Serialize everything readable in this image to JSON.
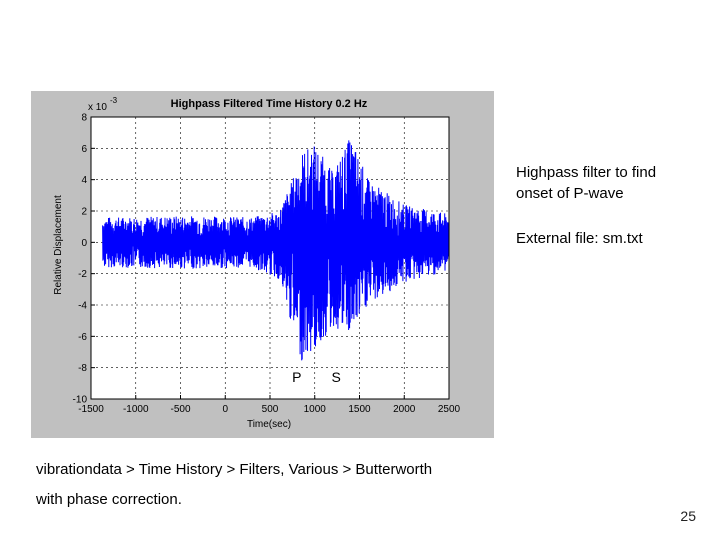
{
  "slide": {
    "note_line1": "Highpass filter to find",
    "note_line2": "onset of P-wave",
    "external_file": "External file:  sm.txt",
    "caption_line1": "vibrationdata > Time History > Filters, Various > Butterworth",
    "caption_line2": "with phase correction.",
    "page_number": "25"
  },
  "chart_data": {
    "type": "line",
    "title": "Highpass Filtered Time History 0.2 Hz",
    "xlabel": "Time(sec)",
    "ylabel": "Relative Displacement",
    "y_scale_label": "x 10",
    "y_scale_exponent": "-3",
    "xlim": [
      -1500,
      2500
    ],
    "ylim": [
      -10,
      8
    ],
    "xticks": [
      -1500,
      -1000,
      -500,
      0,
      500,
      1000,
      1500,
      2000,
      2500
    ],
    "xtick_labels": [
      "-1500",
      "-1000",
      "-500",
      "0",
      "500",
      "1000",
      "1500",
      "2000",
      "2500"
    ],
    "yticks": [
      8,
      6,
      4,
      2,
      0,
      -2,
      -4,
      -6,
      -8,
      -10
    ],
    "ytick_labels": [
      "8",
      "6",
      "4",
      "2",
      "0",
      "-2",
      "-4",
      "-6",
      "-8",
      "-10"
    ],
    "grid": true,
    "series_color": "#0000ff",
    "signal_start": -1370,
    "signal_end": 2500,
    "envelope": [
      {
        "x": -1370,
        "ymax": 1.6,
        "ymin": -1.6
      },
      {
        "x": -300,
        "ymax": 1.7,
        "ymin": -1.7
      },
      {
        "x": 300,
        "ymax": 1.6,
        "ymin": -1.6
      },
      {
        "x": 600,
        "ymax": 2.0,
        "ymin": -2.4
      },
      {
        "x": 750,
        "ymax": 4.0,
        "ymin": -5.5
      },
      {
        "x": 850,
        "ymax": 5.8,
        "ymin": -7.6
      },
      {
        "x": 1000,
        "ymax": 6.3,
        "ymin": -7.0
      },
      {
        "x": 1200,
        "ymax": 4.5,
        "ymin": -5.5
      },
      {
        "x": 1400,
        "ymax": 6.8,
        "ymin": -6.0
      },
      {
        "x": 1600,
        "ymax": 4.0,
        "ymin": -4.0
      },
      {
        "x": 2000,
        "ymax": 2.4,
        "ymin": -2.6
      },
      {
        "x": 2500,
        "ymax": 1.8,
        "ymin": -1.8
      }
    ],
    "annotations": [
      {
        "text": "P",
        "x": 800,
        "y": -8.9
      },
      {
        "text": "S",
        "x": 1240,
        "y": -8.9
      }
    ]
  }
}
